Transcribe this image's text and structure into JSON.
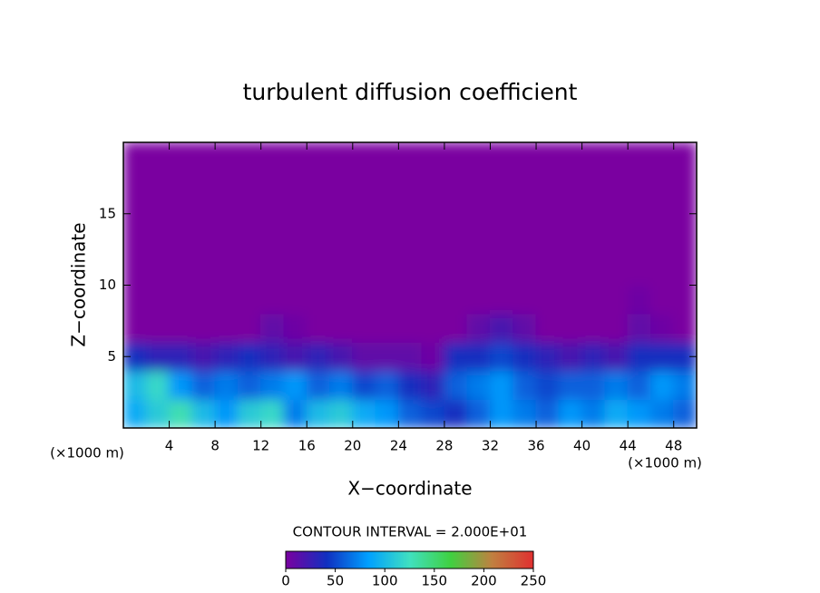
{
  "chart_data": {
    "type": "contour",
    "title": "turbulent diffusion coefficient",
    "xlabel": "X−coordinate",
    "ylabel": "Z−coordinate",
    "xunit": "(×1000 m)",
    "yunit": "(×1000 m)",
    "contour_note": "CONTOUR INTERVAL = 2.000E+01",
    "xlim": [
      0,
      50
    ],
    "ylim": [
      0,
      20
    ],
    "xticks": [
      4,
      8,
      12,
      16,
      20,
      24,
      28,
      32,
      36,
      40,
      44,
      48
    ],
    "yticks": [
      5,
      10,
      15
    ],
    "x": [
      1,
      3,
      5,
      7,
      9,
      11,
      13,
      15,
      17,
      19,
      21,
      23,
      25,
      27,
      29,
      31,
      33,
      35,
      37,
      39,
      41,
      43,
      45,
      47,
      49
    ],
    "y": [
      1,
      3,
      5,
      7,
      9,
      11,
      13,
      15,
      17,
      19
    ],
    "z": [
      [
        90,
        110,
        130,
        100,
        80,
        110,
        120,
        70,
        100,
        110,
        90,
        80,
        60,
        50,
        40,
        60,
        80,
        70,
        60,
        80,
        70,
        90,
        80,
        70,
        60
      ],
      [
        100,
        120,
        80,
        60,
        70,
        60,
        70,
        80,
        60,
        70,
        50,
        60,
        40,
        30,
        60,
        70,
        80,
        60,
        50,
        60,
        60,
        70,
        60,
        80,
        70
      ],
      [
        40,
        30,
        30,
        20,
        30,
        40,
        30,
        20,
        30,
        20,
        10,
        10,
        10,
        5,
        40,
        40,
        50,
        40,
        30,
        20,
        30,
        20,
        40,
        40,
        40
      ],
      [
        0,
        0,
        0,
        0,
        0,
        0,
        10,
        5,
        0,
        0,
        0,
        0,
        0,
        0,
        0,
        10,
        20,
        10,
        0,
        0,
        0,
        0,
        10,
        5,
        0
      ],
      [
        0,
        0,
        0,
        0,
        0,
        0,
        0,
        0,
        0,
        0,
        0,
        0,
        0,
        0,
        0,
        0,
        0,
        0,
        0,
        0,
        0,
        0,
        5,
        0,
        0
      ],
      [
        0,
        0,
        0,
        0,
        0,
        0,
        0,
        0,
        0,
        0,
        0,
        0,
        0,
        0,
        0,
        0,
        0,
        0,
        0,
        0,
        0,
        0,
        0,
        0,
        0
      ],
      [
        0,
        0,
        0,
        0,
        0,
        0,
        0,
        0,
        0,
        0,
        0,
        0,
        0,
        0,
        0,
        0,
        0,
        0,
        0,
        0,
        0,
        0,
        0,
        0,
        0
      ],
      [
        0,
        0,
        0,
        0,
        0,
        0,
        0,
        0,
        0,
        0,
        0,
        0,
        0,
        0,
        0,
        0,
        0,
        0,
        0,
        0,
        0,
        0,
        0,
        0,
        0
      ],
      [
        0,
        0,
        0,
        0,
        0,
        0,
        0,
        0,
        0,
        0,
        0,
        0,
        0,
        0,
        0,
        0,
        0,
        0,
        0,
        0,
        0,
        0,
        0,
        0,
        0
      ],
      [
        0,
        0,
        0,
        0,
        0,
        0,
        0,
        0,
        0,
        0,
        0,
        0,
        0,
        0,
        0,
        0,
        0,
        0,
        0,
        0,
        0,
        0,
        0,
        0,
        0
      ]
    ],
    "clim": [
      0,
      250
    ],
    "cticks": [
      0,
      50,
      100,
      150,
      200,
      250
    ],
    "colorscale": [
      "#7a00a0",
      "#1030c0",
      "#00a0ff",
      "#40e0c0",
      "#40d040",
      "#c08040",
      "#e03030"
    ]
  }
}
